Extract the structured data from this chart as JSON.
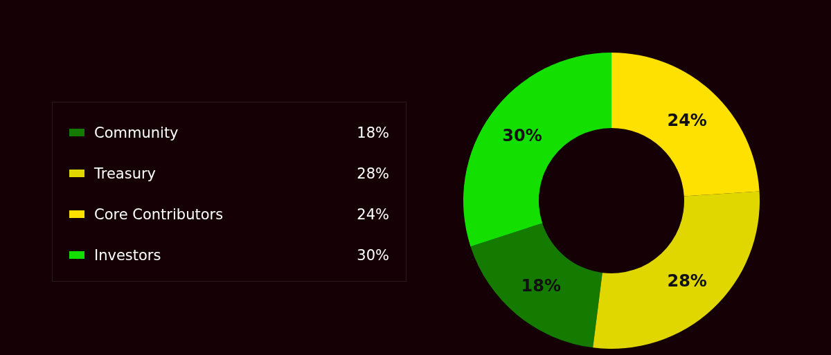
{
  "chart_data": {
    "type": "donut",
    "categories": [
      "Community",
      "Treasury",
      "Core Contributors",
      "Investors"
    ],
    "values": [
      18,
      28,
      24,
      30
    ],
    "colors": [
      "#147a00",
      "#e0d600",
      "#ffe100",
      "#14e000"
    ],
    "value_labels": [
      "18%",
      "28%",
      "24%",
      "30%"
    ],
    "legend": "left"
  }
}
